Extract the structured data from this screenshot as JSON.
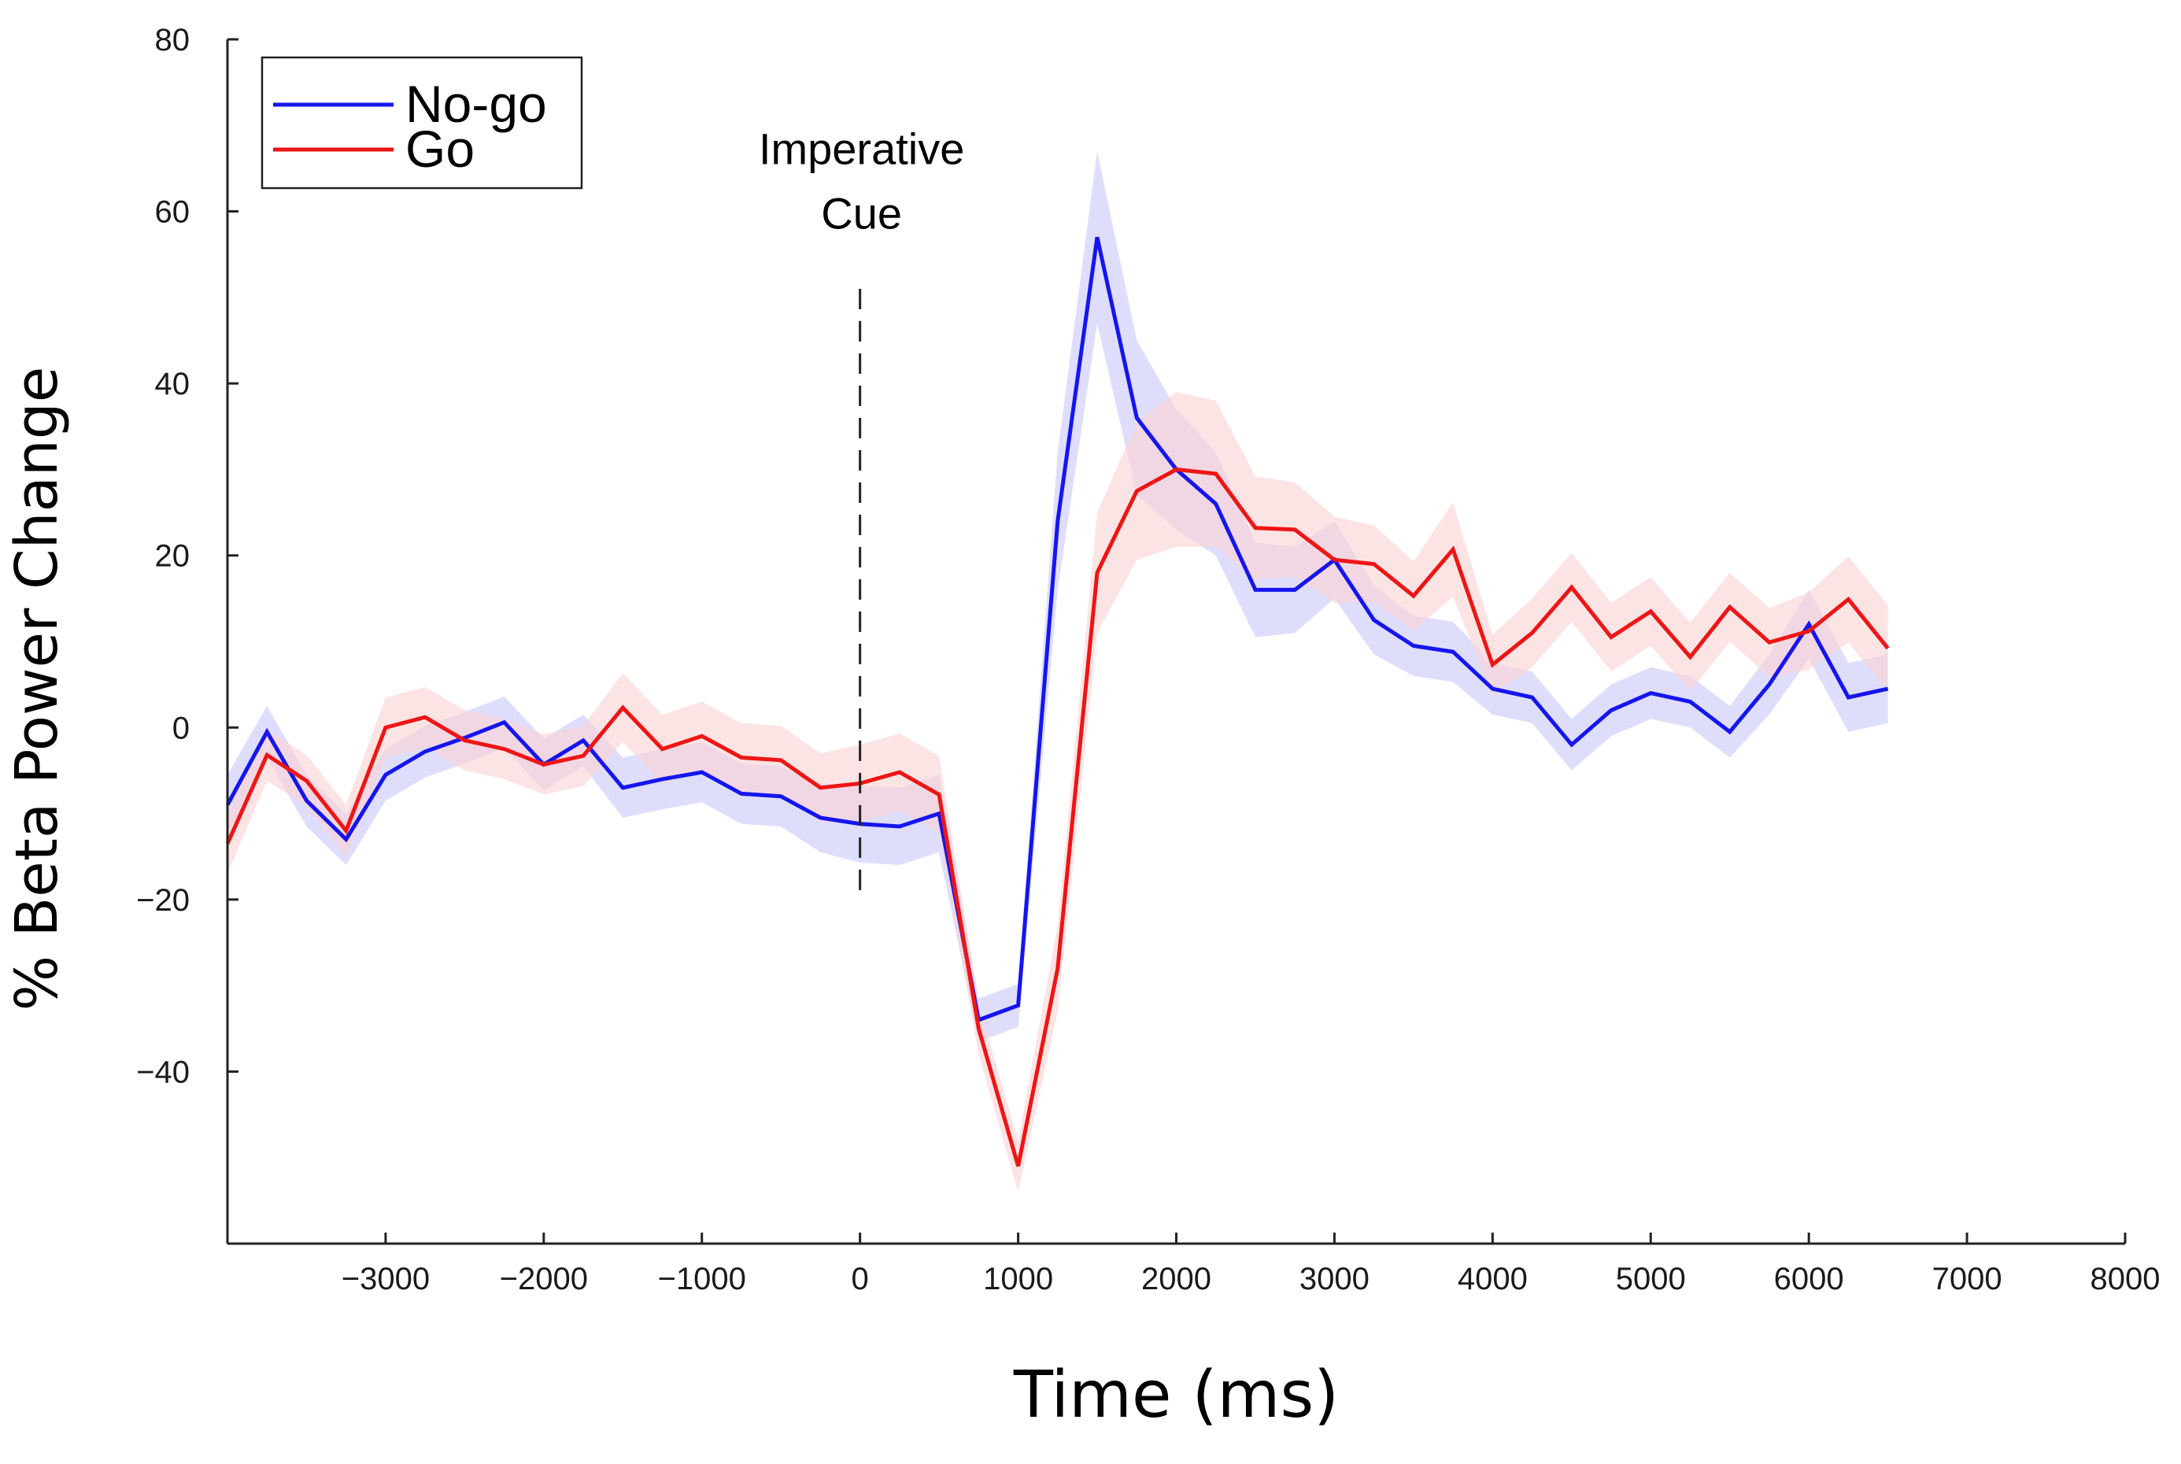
{
  "chart_data": {
    "type": "line",
    "title": "",
    "xlabel": "Time (ms)",
    "ylabel": "% Beta Power Change",
    "xlim": [
      -4000,
      8000
    ],
    "ylim": [
      -60,
      80
    ],
    "xticks": [
      -3000,
      -2000,
      -1000,
      0,
      1000,
      2000,
      3000,
      4000,
      5000,
      6000,
      7000,
      8000
    ],
    "xtick_labels": [
      "−3000",
      "−2000",
      "−1000",
      "0",
      "1000",
      "2000",
      "3000",
      "4000",
      "5000",
      "6000",
      "7000",
      "8000"
    ],
    "yticks": [
      -40,
      -20,
      0,
      20,
      40,
      60,
      80
    ],
    "ytick_labels": [
      "−40",
      "−20",
      "0",
      "20",
      "40",
      "60",
      "80"
    ],
    "grid": false,
    "legend_position": "top-left",
    "annotation": {
      "x": 0,
      "lines": [
        "Imperative",
        "Cue"
      ],
      "style": "dashed vertical line"
    },
    "x": [
      -4000,
      -3750,
      -3500,
      -3250,
      -3000,
      -2750,
      -2500,
      -2250,
      -2000,
      -1750,
      -1500,
      -1250,
      -1000,
      -750,
      -500,
      -250,
      0,
      250,
      500,
      750,
      1000,
      1250,
      1500,
      1750,
      2000,
      2250,
      2500,
      2750,
      3000,
      3250,
      3500,
      3750,
      4000,
      4250,
      4500,
      4750,
      5000,
      5250,
      5500,
      5750,
      6000,
      6250,
      6500
    ],
    "series": [
      {
        "name": "No-go",
        "color": "#1515ee",
        "band_color": "#c8c8fa",
        "values": [
          -9,
          -0.5,
          -8.5,
          -13,
          -5.5,
          -2.8,
          -1.2,
          0.6,
          -4.3,
          -1.5,
          -7,
          -6,
          -5.2,
          -7.7,
          -8,
          -10.5,
          -11.2,
          -11.5,
          -10,
          -34,
          -32.3,
          24,
          57,
          36,
          30,
          26,
          16,
          16,
          19.5,
          12.5,
          9.5,
          8.8,
          4.5,
          3.5,
          -2,
          2,
          4,
          3,
          -0.5,
          5,
          12,
          3.5,
          4.5
        ],
        "sem": [
          3.5,
          3,
          3,
          3,
          3,
          3,
          3,
          3,
          3,
          3,
          3.5,
          3.5,
          3.5,
          3.5,
          3.5,
          4,
          4.5,
          4.5,
          4.5,
          2.5,
          2.5,
          8,
          10,
          9,
          7,
          6,
          5.5,
          5,
          4.5,
          4,
          3.5,
          3.5,
          3,
          3,
          3,
          3,
          3,
          3,
          3,
          3.5,
          4,
          4,
          4
        ]
      },
      {
        "name": "Go",
        "color": "#ee1515",
        "band_color": "#fbd2d2",
        "values": [
          -13.5,
          -3.2,
          -6.2,
          -12,
          0,
          1.2,
          -1.5,
          -2.5,
          -4.3,
          -3.3,
          2.3,
          -2.5,
          -1,
          -3.5,
          -3.8,
          -7,
          -6.5,
          -5.2,
          -7.8,
          -35,
          -51,
          -28,
          18,
          27.5,
          30,
          29.5,
          23.2,
          23,
          19.5,
          19,
          15.3,
          20.7,
          7.3,
          11,
          16.3,
          10.5,
          13.5,
          8.2,
          14,
          9.9,
          11.2,
          14.9,
          9.2
        ]
      }
    ]
  }
}
